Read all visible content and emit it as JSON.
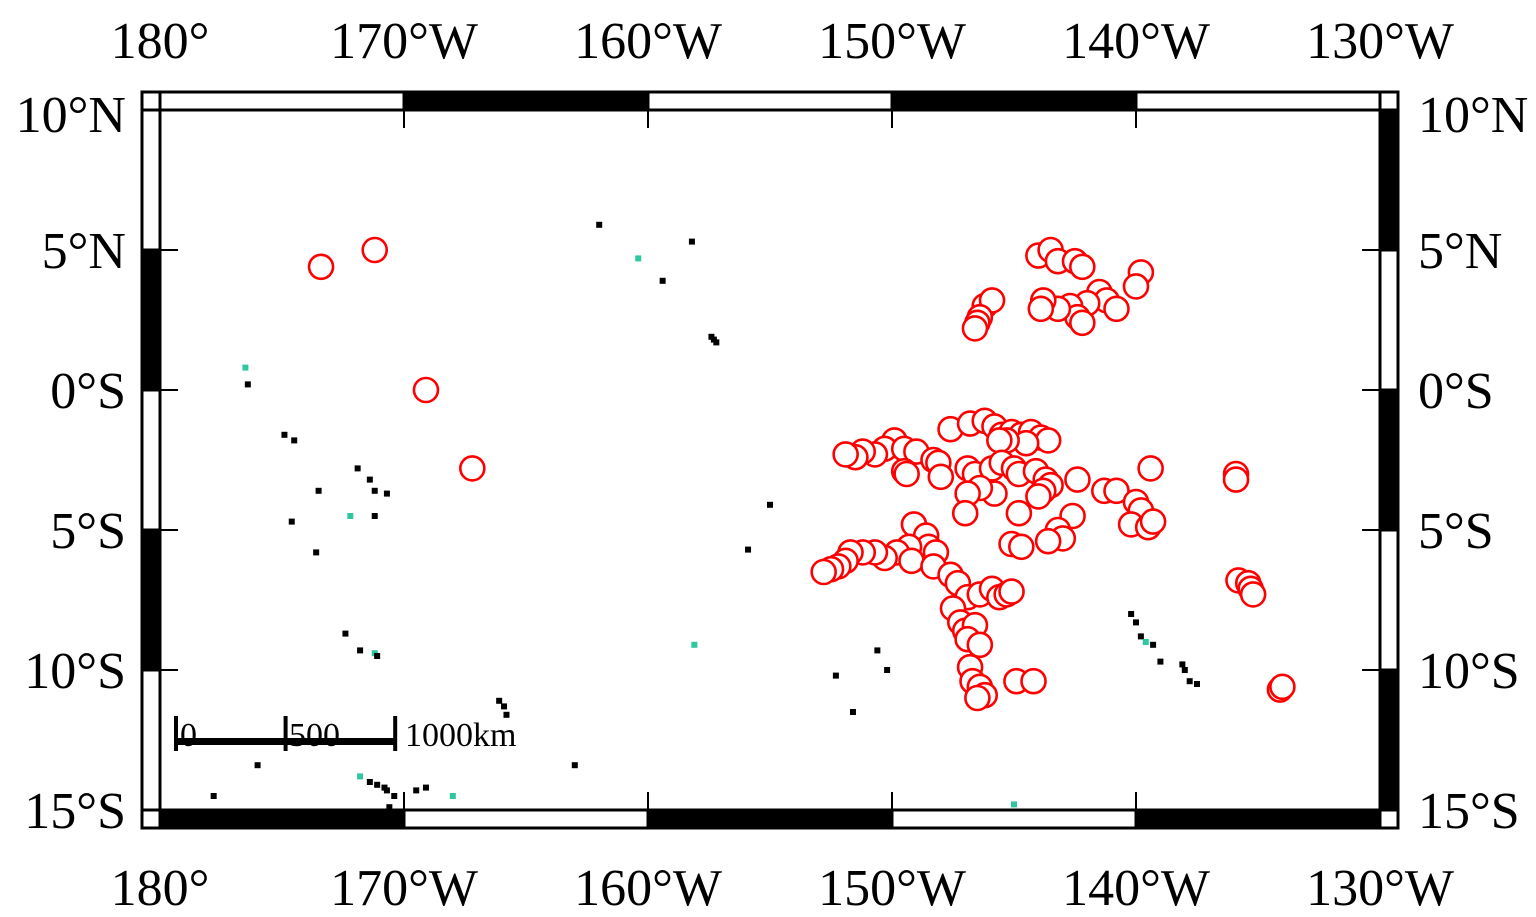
{
  "colors": {
    "station_marker": "#ff0000",
    "station_fill": "#ffffff",
    "land": "#000000",
    "reef": "#2ec7a0",
    "frame_dark": "#000000",
    "frame_light": "#ffffff"
  },
  "map": {
    "projection": "cylindrical",
    "lon_range": [
      -180,
      -130
    ],
    "lat_range": [
      -15,
      10
    ],
    "x_tick_values": [
      -180,
      -170,
      -160,
      -150,
      -140,
      -130
    ],
    "x_tick_labels": [
      "180°",
      "170°W",
      "160°W",
      "150°W",
      "140°W",
      "130°W"
    ],
    "y_tick_values": [
      10,
      5,
      0,
      -5,
      -10,
      -15
    ],
    "y_tick_labels": [
      "10°N",
      "5°N",
      "0°S",
      "5°S",
      "10°S",
      "15°S"
    ],
    "scale_bar": {
      "labels": [
        "0",
        "500",
        "1000km"
      ],
      "km_values": [
        0,
        500,
        1000
      ]
    }
  },
  "land_points": [
    [
      -176.5,
      0.8
    ],
    [
      -176.4,
      0.2
    ],
    [
      -174.9,
      -1.6
    ],
    [
      -174.5,
      -1.8
    ],
    [
      -173.5,
      -3.6
    ],
    [
      -174.6,
      -4.7
    ],
    [
      -173.6,
      -5.8
    ],
    [
      -172.2,
      -4.5
    ],
    [
      -171.9,
      -2.8
    ],
    [
      -171.4,
      -3.2
    ],
    [
      -171.2,
      -3.6
    ],
    [
      -170.7,
      -3.7
    ],
    [
      -171.2,
      -4.5
    ],
    [
      -162.0,
      5.9
    ],
    [
      -160.4,
      4.7
    ],
    [
      -159.4,
      3.9
    ],
    [
      -157.4,
      1.9
    ],
    [
      -157.3,
      1.8
    ],
    [
      -157.2,
      1.7
    ],
    [
      -155.0,
      -4.1
    ],
    [
      -155.9,
      -5.7
    ],
    [
      -158.1,
      -9.1
    ],
    [
      -150.6,
      -9.3
    ],
    [
      -150.2,
      -10.0
    ],
    [
      -152.3,
      -10.2
    ],
    [
      -151.6,
      -11.5
    ],
    [
      -172.4,
      -8.7
    ],
    [
      -171.8,
      -9.3
    ],
    [
      -171.2,
      -9.4
    ],
    [
      -171.1,
      -9.5
    ],
    [
      -166.1,
      -11.1
    ],
    [
      -165.9,
      -11.3
    ],
    [
      -165.8,
      -11.6
    ],
    [
      -176.0,
      -13.4
    ],
    [
      -177.8,
      -14.5
    ],
    [
      -171.8,
      -13.8
    ],
    [
      -171.4,
      -14.0
    ],
    [
      -171.1,
      -14.1
    ],
    [
      -170.8,
      -14.2
    ],
    [
      -170.7,
      -14.3
    ],
    [
      -169.5,
      -14.3
    ],
    [
      -169.1,
      -14.2
    ],
    [
      -168.0,
      -14.5
    ],
    [
      -170.4,
      -14.5
    ],
    [
      -170.6,
      -14.9
    ],
    [
      -163.0,
      -13.4
    ],
    [
      -140.2,
      -8.0
    ],
    [
      -140.0,
      -8.3
    ],
    [
      -139.8,
      -8.8
    ],
    [
      -139.6,
      -9.0
    ],
    [
      -139.3,
      -9.1
    ],
    [
      -139.0,
      -9.7
    ],
    [
      -138.1,
      -9.8
    ],
    [
      -138.0,
      -10.0
    ],
    [
      -137.8,
      -10.4
    ],
    [
      -137.5,
      -10.5
    ],
    [
      -145.0,
      -14.8
    ],
    [
      -158.2,
      5.3
    ]
  ],
  "stations": [
    [
      -173.4,
      4.4
    ],
    [
      -171.2,
      5.0
    ],
    [
      -169.1,
      0.0
    ],
    [
      -167.2,
      -2.8
    ],
    [
      -144.0,
      4.8
    ],
    [
      -143.5,
      5.0
    ],
    [
      -143.2,
      4.6
    ],
    [
      -142.5,
      4.6
    ],
    [
      -142.2,
      4.4
    ],
    [
      -139.8,
      4.2
    ],
    [
      -140.0,
      3.7
    ],
    [
      -141.5,
      3.5
    ],
    [
      -141.2,
      3.2
    ],
    [
      -140.8,
      2.9
    ],
    [
      -142.0,
      3.1
    ],
    [
      -142.7,
      3.0
    ],
    [
      -142.4,
      2.6
    ],
    [
      -142.2,
      2.4
    ],
    [
      -143.2,
      2.9
    ],
    [
      -143.8,
      3.2
    ],
    [
      -143.9,
      2.9
    ],
    [
      -146.2,
      3.0
    ],
    [
      -145.9,
      3.2
    ],
    [
      -146.4,
      2.6
    ],
    [
      -146.5,
      2.4
    ],
    [
      -146.6,
      2.2
    ],
    [
      -147.6,
      -1.4
    ],
    [
      -146.8,
      -1.2
    ],
    [
      -146.2,
      -1.1
    ],
    [
      -145.8,
      -1.3
    ],
    [
      -145.5,
      -1.6
    ],
    [
      -145.1,
      -1.5
    ],
    [
      -144.7,
      -1.6
    ],
    [
      -144.3,
      -1.5
    ],
    [
      -143.9,
      -1.7
    ],
    [
      -143.6,
      -1.8
    ],
    [
      -144.5,
      -1.9
    ],
    [
      -145.3,
      -1.8
    ],
    [
      -145.6,
      -1.8
    ],
    [
      -149.9,
      -1.8
    ],
    [
      -150.3,
      -2.1
    ],
    [
      -150.7,
      -2.3
    ],
    [
      -151.2,
      -2.2
    ],
    [
      -151.5,
      -2.4
    ],
    [
      -151.9,
      -2.3
    ],
    [
      -149.5,
      -2.1
    ],
    [
      -149.0,
      -2.2
    ],
    [
      -148.3,
      -2.5
    ],
    [
      -148.1,
      -2.6
    ],
    [
      -149.5,
      -2.9
    ],
    [
      -149.4,
      -3.0
    ],
    [
      -148.0,
      -3.1
    ],
    [
      -146.9,
      -2.8
    ],
    [
      -146.6,
      -3.0
    ],
    [
      -145.9,
      -2.8
    ],
    [
      -145.5,
      -2.6
    ],
    [
      -145.0,
      -2.8
    ],
    [
      -144.8,
      -3.0
    ],
    [
      -144.1,
      -2.9
    ],
    [
      -143.7,
      -3.2
    ],
    [
      -143.5,
      -3.4
    ],
    [
      -143.8,
      -3.6
    ],
    [
      -144.0,
      -3.8
    ],
    [
      -142.4,
      -3.2
    ],
    [
      -141.3,
      -3.6
    ],
    [
      -140.8,
      -3.6
    ],
    [
      -139.4,
      -2.8
    ],
    [
      -140.0,
      -4.0
    ],
    [
      -139.8,
      -4.3
    ],
    [
      -140.2,
      -4.8
    ],
    [
      -139.5,
      -4.9
    ],
    [
      -139.3,
      -4.7
    ],
    [
      -142.6,
      -4.5
    ],
    [
      -143.2,
      -5.0
    ],
    [
      -143.0,
      -5.3
    ],
    [
      -143.6,
      -5.4
    ],
    [
      -144.8,
      -4.4
    ],
    [
      -145.1,
      -5.5
    ],
    [
      -144.7,
      -5.6
    ],
    [
      -145.8,
      -3.7
    ],
    [
      -146.4,
      -3.5
    ],
    [
      -146.9,
      -3.7
    ],
    [
      -147.0,
      -4.4
    ],
    [
      -149.1,
      -4.8
    ],
    [
      -148.6,
      -5.2
    ],
    [
      -148.5,
      -5.6
    ],
    [
      -148.2,
      -5.8
    ],
    [
      -149.3,
      -5.6
    ],
    [
      -149.8,
      -5.8
    ],
    [
      -150.3,
      -6.0
    ],
    [
      -150.7,
      -5.8
    ],
    [
      -151.2,
      -5.8
    ],
    [
      -151.7,
      -5.8
    ],
    [
      -151.9,
      -6.1
    ],
    [
      -152.2,
      -6.3
    ],
    [
      -152.5,
      -6.4
    ],
    [
      -152.8,
      -6.5
    ],
    [
      -149.2,
      -6.1
    ],
    [
      -148.3,
      -6.3
    ],
    [
      -147.6,
      -6.6
    ],
    [
      -147.3,
      -6.9
    ],
    [
      -146.9,
      -7.4
    ],
    [
      -146.4,
      -7.3
    ],
    [
      -145.9,
      -7.1
    ],
    [
      -145.6,
      -7.4
    ],
    [
      -145.3,
      -7.3
    ],
    [
      -145.1,
      -7.2
    ],
    [
      -147.5,
      -7.8
    ],
    [
      -147.2,
      -8.3
    ],
    [
      -147.0,
      -8.6
    ],
    [
      -146.6,
      -8.4
    ],
    [
      -146.9,
      -8.9
    ],
    [
      -146.4,
      -9.1
    ],
    [
      -146.8,
      -9.9
    ],
    [
      -146.7,
      -10.4
    ],
    [
      -146.4,
      -10.6
    ],
    [
      -146.2,
      -10.9
    ],
    [
      -146.5,
      -11.0
    ],
    [
      -144.9,
      -10.4
    ],
    [
      -144.2,
      -10.4
    ],
    [
      -135.9,
      -3.0
    ],
    [
      -135.9,
      -3.2
    ],
    [
      -135.8,
      -6.8
    ],
    [
      -135.4,
      -6.9
    ],
    [
      -135.3,
      -7.1
    ],
    [
      -135.2,
      -7.3
    ],
    [
      -134.1,
      -10.7
    ],
    [
      -134.0,
      -10.6
    ]
  ]
}
